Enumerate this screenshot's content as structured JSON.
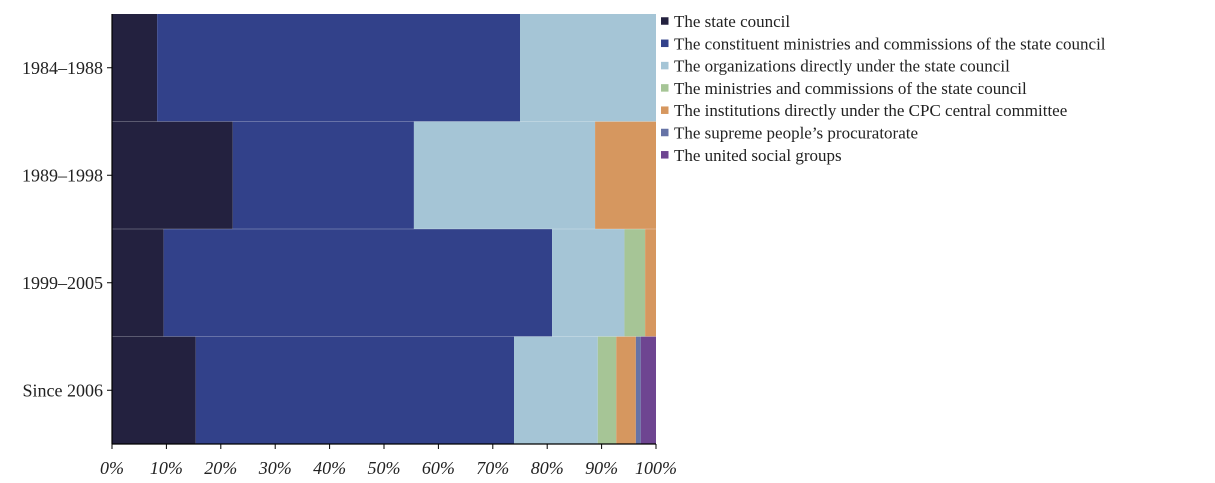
{
  "chart_data": {
    "type": "bar",
    "orientation": "horizontal",
    "stacked": true,
    "normalized": true,
    "title": "",
    "xlabel": "",
    "ylabel": "",
    "xlim": [
      0,
      100
    ],
    "grid": false,
    "legend_position": "right",
    "categories": [
      "1984–1988",
      "1989–1998",
      "1999–2005",
      "Since 2006"
    ],
    "x_ticks": [
      "0%",
      "10%",
      "20%",
      "30%",
      "40%",
      "50%",
      "60%",
      "70%",
      "80%",
      "90%",
      "100%"
    ],
    "series": [
      {
        "name": "The state council",
        "color": "#23213f",
        "values": [
          8.3,
          22.2,
          9.5,
          15.4
        ]
      },
      {
        "name": "The constituent ministries and commissions of the state council",
        "color": "#32418a",
        "values": [
          66.7,
          33.3,
          71.4,
          58.5
        ]
      },
      {
        "name": "The organizations directly under the state council",
        "color": "#a5c5d6",
        "values": [
          25.0,
          33.3,
          13.3,
          15.4
        ]
      },
      {
        "name": "The ministries and commissions of the state council",
        "color": "#a6c596",
        "values": [
          0,
          0,
          3.8,
          3.4
        ]
      },
      {
        "name": "The institutions directly under the CPC central committee",
        "color": "#d6975f",
        "values": [
          0,
          11.2,
          2.0,
          3.6
        ]
      },
      {
        "name": "The supreme people’s procuratorate",
        "color": "#6673a6",
        "values": [
          0,
          0,
          0,
          0.9
        ]
      },
      {
        "name": "The united social groups",
        "color": "#6e4591",
        "values": [
          0,
          0,
          0,
          2.8
        ]
      }
    ]
  }
}
